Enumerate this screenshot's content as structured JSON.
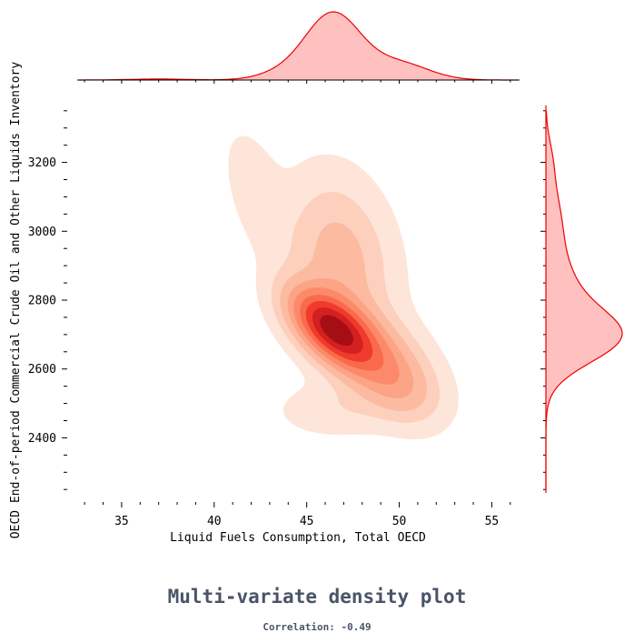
{
  "chart_data": {
    "type": "kde-joint",
    "title": "Multi-variate density plot",
    "subtitle": "Correlation: -0.49",
    "xlabel": "Liquid Fuels Consumption, Total OECD",
    "ylabel": "OECD End-of-period Commercial Crude Oil and Other Liquids Inventory",
    "xlim": [
      32.6,
      56.5
    ],
    "ylim": [
      2240,
      3360
    ],
    "x_ticks": [
      35,
      40,
      45,
      50,
      55
    ],
    "y_ticks": [
      2400,
      2600,
      2800,
      3000,
      3200
    ],
    "density_components": [
      {
        "mx": 46.3,
        "my": 2720,
        "sx": 1.5,
        "sy": 75,
        "rho": -0.55,
        "w": 1.0
      },
      {
        "mx": 48.6,
        "my": 2640,
        "sx": 1.9,
        "sy": 95,
        "rho": -0.45,
        "w": 0.4
      },
      {
        "mx": 46.8,
        "my": 2920,
        "sx": 1.8,
        "sy": 150,
        "rho": -0.2,
        "w": 0.3
      },
      {
        "mx": 50.2,
        "my": 2540,
        "sx": 1.4,
        "sy": 70,
        "rho": -0.3,
        "w": 0.18
      },
      {
        "mx": 42.3,
        "my": 3110,
        "sx": 1.1,
        "sy": 120,
        "rho": -0.5,
        "w": 0.1
      },
      {
        "mx": 46.5,
        "my": 2480,
        "sx": 2.0,
        "sy": 50,
        "rho": 0.0,
        "w": 0.1
      }
    ],
    "marginal_x_components": [
      {
        "m": 46.4,
        "s": 1.5,
        "w": 1.0
      },
      {
        "m": 50.0,
        "s": 1.6,
        "w": 0.25
      },
      {
        "m": 43.5,
        "s": 1.3,
        "w": 0.08
      },
      {
        "m": 37.0,
        "s": 1.6,
        "w": 0.015
      }
    ],
    "marginal_y_components": [
      {
        "m": 2690,
        "s": 75,
        "w": 1.0
      },
      {
        "m": 2820,
        "s": 90,
        "w": 0.35
      },
      {
        "m": 3020,
        "s": 110,
        "w": 0.22
      },
      {
        "m": 3210,
        "s": 60,
        "w": 0.06
      }
    ],
    "contour_colors": [
      "#fee5d9",
      "#fdd0bd",
      "#fcbba1",
      "#fca486",
      "#fc8a6a",
      "#f96b4d",
      "#ef3b2c",
      "#d42020",
      "#a50f15"
    ],
    "marginal_fill": "#ffc0c0",
    "marginal_line": "#ee0000"
  }
}
